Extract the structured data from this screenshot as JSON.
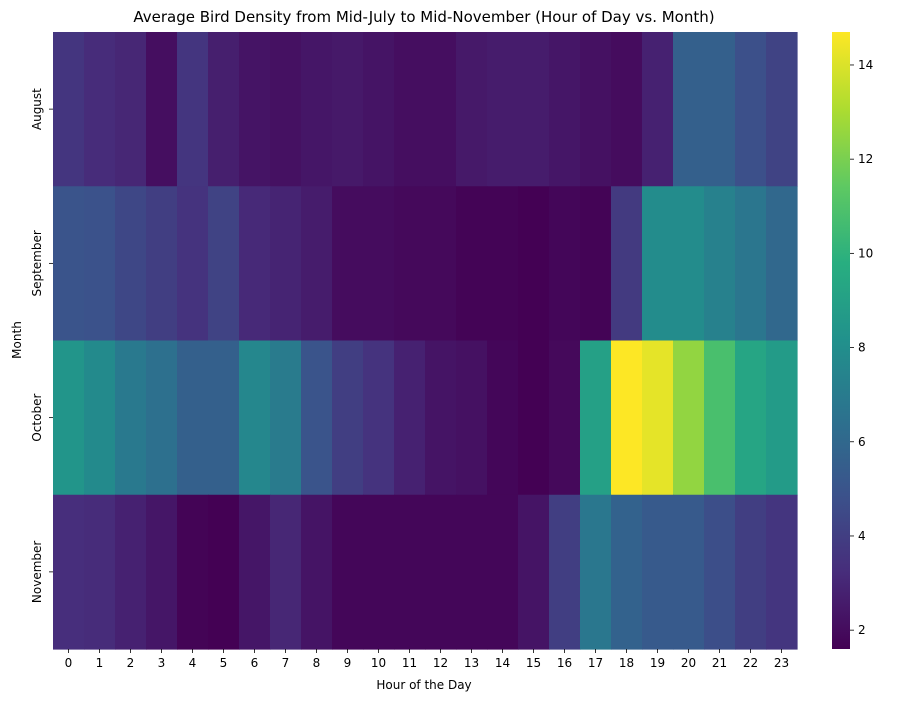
{
  "chart_data": {
    "type": "heatmap",
    "title": "Average Bird Density from Mid-July to Mid-November (Hour of Day vs. Month)",
    "xlabel": "Hour of the Day",
    "ylabel": "Month",
    "x_categories": [
      "0",
      "1",
      "2",
      "3",
      "4",
      "5",
      "6",
      "7",
      "8",
      "9",
      "10",
      "11",
      "12",
      "13",
      "14",
      "15",
      "16",
      "17",
      "18",
      "19",
      "20",
      "21",
      "22",
      "23"
    ],
    "y_categories": [
      "August",
      "September",
      "October",
      "November"
    ],
    "values": [
      [
        3.6,
        3.2,
        3.0,
        2.1,
        3.6,
        2.7,
        2.3,
        2.2,
        2.4,
        2.5,
        2.3,
        2.1,
        2.1,
        2.5,
        2.6,
        2.6,
        2.4,
        2.2,
        2.0,
        2.8,
        5.6,
        5.6,
        4.8,
        4.2
      ],
      [
        5.0,
        4.9,
        4.4,
        4.0,
        3.5,
        4.2,
        3.1,
        2.9,
        2.6,
        2.0,
        2.0,
        1.9,
        1.9,
        1.7,
        1.7,
        1.6,
        1.8,
        1.7,
        3.8,
        7.9,
        7.9,
        7.3,
        6.7,
        6.0
      ],
      [
        8.4,
        7.8,
        6.9,
        6.4,
        5.6,
        5.6,
        7.6,
        7.0,
        5.0,
        4.0,
        3.5,
        2.8,
        2.3,
        2.2,
        1.8,
        1.6,
        1.9,
        9.0,
        14.7,
        14.2,
        12.5,
        10.8,
        9.3,
        8.7
      ],
      [
        3.3,
        3.2,
        2.8,
        2.4,
        1.7,
        1.6,
        2.4,
        3.0,
        2.3,
        1.8,
        1.8,
        1.8,
        1.8,
        1.8,
        1.8,
        2.3,
        4.0,
        6.8,
        5.7,
        5.3,
        5.3,
        4.7,
        4.0,
        3.6
      ]
    ],
    "colormap": "viridis",
    "colorbar": {
      "range": [
        1.6,
        14.7
      ],
      "ticks": [
        "2",
        "4",
        "6",
        "8",
        "10",
        "12",
        "14"
      ]
    },
    "grid": false,
    "legend": "colorbar-right"
  }
}
